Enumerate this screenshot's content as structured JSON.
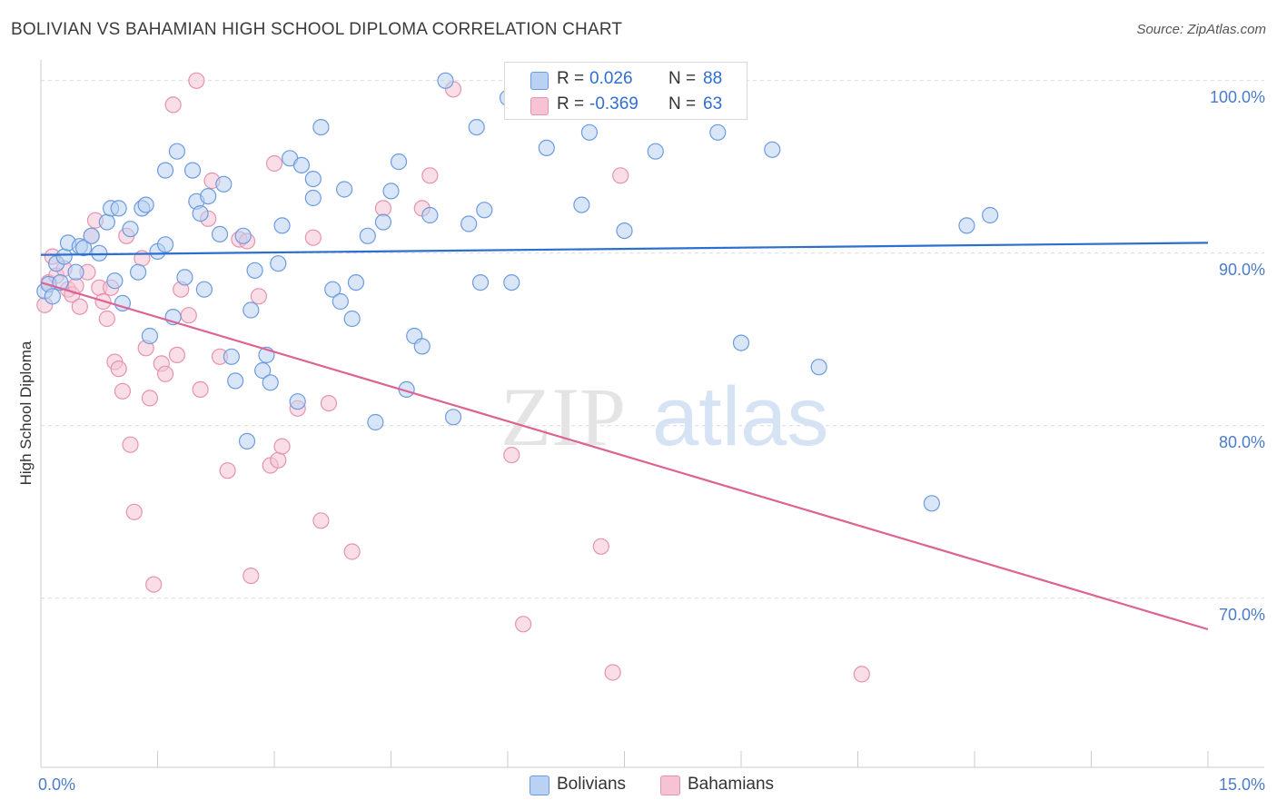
{
  "title": "BOLIVIAN VS BAHAMIAN HIGH SCHOOL DIPLOMA CORRELATION CHART",
  "source": "Source: ZipAtlas.com",
  "watermark": {
    "zip": "ZIP",
    "atlas": "atlas"
  },
  "colors": {
    "blue_fill": "#b9d1f3",
    "blue_stroke": "#6c9be0",
    "blue_line": "#2c6fcf",
    "pink_fill": "#f6c3d4",
    "pink_stroke": "#e693ae",
    "pink_line": "#dc6393",
    "grid": "#d9d9d9",
    "axis_label": "#4a7cc9"
  },
  "stats": [
    {
      "r_label": "R =",
      "r_value": "0.026",
      "n_label": "N =",
      "n_value": "88",
      "color": "#b9d1f3",
      "stroke": "#6c9be0"
    },
    {
      "r_label": "R =",
      "r_value": "-0.369",
      "n_label": "N =",
      "n_value": "63",
      "color": "#f6c3d4",
      "stroke": "#e693ae"
    }
  ],
  "legend": [
    {
      "label": "Bolivians",
      "color": "#b9d1f3",
      "stroke": "#6c9be0"
    },
    {
      "label": "Bahamians",
      "color": "#f6c3d4",
      "stroke": "#e693ae"
    }
  ],
  "chart_data": {
    "type": "scatter",
    "title": "BOLIVIAN VS BAHAMIAN HIGH SCHOOL DIPLOMA CORRELATION CHART",
    "xlabel": "",
    "ylabel": "High School Diploma",
    "xlim": [
      0,
      15
    ],
    "ylim": [
      60.2,
      101.2
    ],
    "x_tick_labels": [
      {
        "value": 0,
        "label": "0.0%"
      },
      {
        "value": 15,
        "label": "15.0%"
      }
    ],
    "y_tick_labels": [
      {
        "value": 100,
        "label": "100.0%"
      },
      {
        "value": 90,
        "label": "90.0%"
      },
      {
        "value": 80,
        "label": "80.0%"
      },
      {
        "value": 70,
        "label": "70.0%"
      }
    ],
    "grid": "horizontal-dashed",
    "legend_position": "bottom-center",
    "series": [
      {
        "name": "Bolivians",
        "trend": {
          "x": [
            0,
            15
          ],
          "y": [
            89.9,
            90.6
          ]
        },
        "points": [
          [
            0.05,
            87.8
          ],
          [
            0.1,
            88.2
          ],
          [
            0.15,
            87.5
          ],
          [
            0.2,
            89.4
          ],
          [
            0.25,
            88.3
          ],
          [
            0.3,
            89.8
          ],
          [
            0.35,
            90.6
          ],
          [
            0.45,
            88.9
          ],
          [
            0.5,
            90.4
          ],
          [
            0.55,
            90.3
          ],
          [
            0.65,
            91.0
          ],
          [
            0.75,
            90.0
          ],
          [
            0.85,
            91.8
          ],
          [
            0.9,
            92.6
          ],
          [
            0.95,
            88.4
          ],
          [
            1.0,
            92.6
          ],
          [
            1.05,
            87.1
          ],
          [
            1.15,
            91.4
          ],
          [
            1.25,
            88.9
          ],
          [
            1.3,
            92.6
          ],
          [
            1.35,
            92.8
          ],
          [
            1.4,
            85.2
          ],
          [
            1.5,
            90.1
          ],
          [
            1.6,
            94.8
          ],
          [
            1.6,
            90.5
          ],
          [
            1.7,
            86.3
          ],
          [
            1.75,
            95.9
          ],
          [
            1.85,
            88.6
          ],
          [
            1.95,
            94.8
          ],
          [
            2.0,
            93.0
          ],
          [
            2.05,
            92.3
          ],
          [
            2.1,
            87.9
          ],
          [
            2.15,
            93.3
          ],
          [
            2.3,
            91.1
          ],
          [
            2.35,
            94.0
          ],
          [
            2.45,
            84.0
          ],
          [
            2.5,
            82.6
          ],
          [
            2.6,
            91.0
          ],
          [
            2.65,
            79.1
          ],
          [
            2.7,
            86.7
          ],
          [
            2.75,
            89.0
          ],
          [
            2.85,
            83.2
          ],
          [
            2.9,
            84.1
          ],
          [
            2.95,
            82.5
          ],
          [
            3.05,
            89.4
          ],
          [
            3.1,
            91.6
          ],
          [
            3.2,
            95.5
          ],
          [
            3.3,
            81.4
          ],
          [
            3.35,
            95.1
          ],
          [
            3.5,
            94.3
          ],
          [
            3.5,
            93.2
          ],
          [
            3.6,
            97.3
          ],
          [
            3.75,
            87.9
          ],
          [
            3.85,
            87.2
          ],
          [
            3.9,
            93.7
          ],
          [
            4.0,
            86.2
          ],
          [
            4.05,
            88.3
          ],
          [
            4.2,
            91.0
          ],
          [
            4.3,
            80.2
          ],
          [
            4.4,
            91.8
          ],
          [
            4.5,
            93.6
          ],
          [
            4.6,
            95.3
          ],
          [
            4.7,
            82.1
          ],
          [
            4.8,
            85.2
          ],
          [
            4.9,
            84.6
          ],
          [
            5.0,
            92.2
          ],
          [
            5.2,
            100.0
          ],
          [
            5.3,
            80.5
          ],
          [
            5.5,
            91.7
          ],
          [
            5.6,
            97.3
          ],
          [
            5.65,
            88.3
          ],
          [
            5.7,
            92.5
          ],
          [
            6.0,
            99.0
          ],
          [
            6.05,
            88.3
          ],
          [
            6.5,
            96.1
          ],
          [
            6.95,
            92.8
          ],
          [
            7.05,
            97.0
          ],
          [
            7.5,
            91.3
          ],
          [
            7.9,
            95.9
          ],
          [
            8.7,
            97.0
          ],
          [
            9.0,
            84.8
          ],
          [
            9.4,
            96.0
          ],
          [
            10.0,
            83.4
          ],
          [
            11.45,
            75.5
          ],
          [
            11.9,
            91.6
          ],
          [
            12.2,
            92.2
          ]
        ]
      },
      {
        "name": "Bahamians",
        "trend": {
          "x": [
            0,
            15
          ],
          "y": [
            88.3,
            68.2
          ]
        },
        "points": [
          [
            0.05,
            87.0
          ],
          [
            0.1,
            88.3
          ],
          [
            0.15,
            89.8
          ],
          [
            0.2,
            88.7
          ],
          [
            0.3,
            89.1
          ],
          [
            0.35,
            87.9
          ],
          [
            0.4,
            87.6
          ],
          [
            0.45,
            88.1
          ],
          [
            0.5,
            86.9
          ],
          [
            0.6,
            88.9
          ],
          [
            0.65,
            91.0
          ],
          [
            0.7,
            91.9
          ],
          [
            0.75,
            88.0
          ],
          [
            0.8,
            87.2
          ],
          [
            0.85,
            86.2
          ],
          [
            0.9,
            88.0
          ],
          [
            0.95,
            83.7
          ],
          [
            1.0,
            83.3
          ],
          [
            1.05,
            82.0
          ],
          [
            1.1,
            91.0
          ],
          [
            1.15,
            78.9
          ],
          [
            1.2,
            75.0
          ],
          [
            1.3,
            89.7
          ],
          [
            1.35,
            84.5
          ],
          [
            1.4,
            81.6
          ],
          [
            1.45,
            70.8
          ],
          [
            1.55,
            83.6
          ],
          [
            1.6,
            83.0
          ],
          [
            1.7,
            98.6
          ],
          [
            1.75,
            84.1
          ],
          [
            1.8,
            87.9
          ],
          [
            1.9,
            86.4
          ],
          [
            2.0,
            100.0
          ],
          [
            2.05,
            82.1
          ],
          [
            2.15,
            92.0
          ],
          [
            2.2,
            94.2
          ],
          [
            2.3,
            84.0
          ],
          [
            2.4,
            77.4
          ],
          [
            2.55,
            90.8
          ],
          [
            2.65,
            90.7
          ],
          [
            2.7,
            71.3
          ],
          [
            2.8,
            87.5
          ],
          [
            2.95,
            77.7
          ],
          [
            3.0,
            95.2
          ],
          [
            3.05,
            78.0
          ],
          [
            3.1,
            78.8
          ],
          [
            3.3,
            81.0
          ],
          [
            3.5,
            90.9
          ],
          [
            3.6,
            74.5
          ],
          [
            3.7,
            81.3
          ],
          [
            4.0,
            72.7
          ],
          [
            4.4,
            92.6
          ],
          [
            4.9,
            92.6
          ],
          [
            5.0,
            94.5
          ],
          [
            5.3,
            99.5
          ],
          [
            6.05,
            78.3
          ],
          [
            6.2,
            68.5
          ],
          [
            7.2,
            73.0
          ],
          [
            7.35,
            65.7
          ],
          [
            7.45,
            94.5
          ],
          [
            10.55,
            65.6
          ]
        ]
      }
    ]
  }
}
